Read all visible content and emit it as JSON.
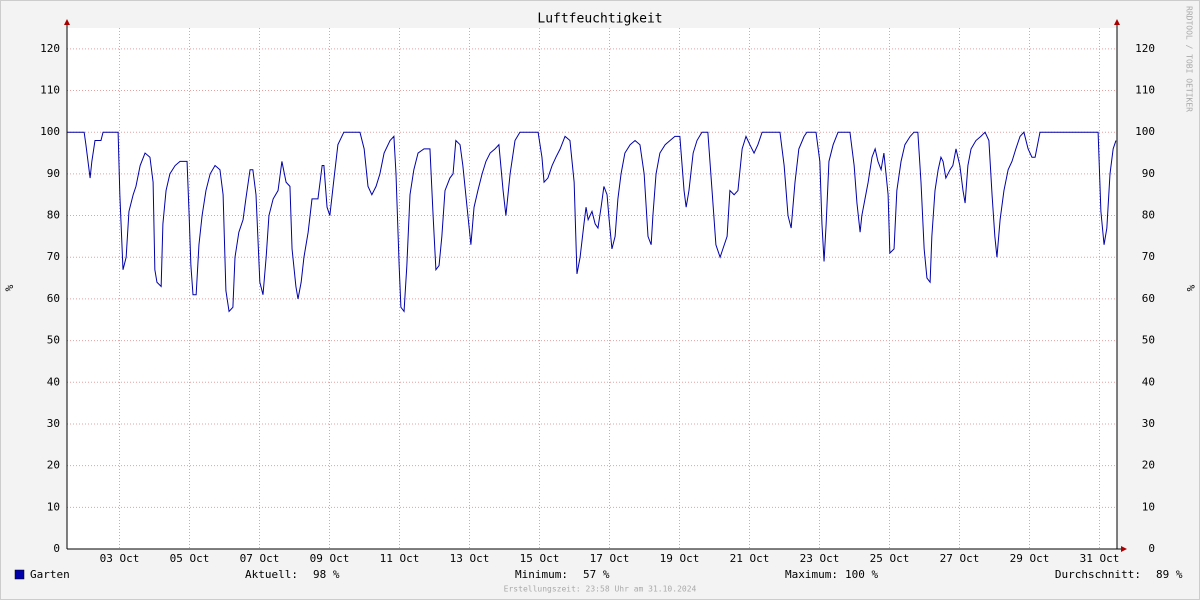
{
  "chart_data": {
    "type": "line",
    "title": "Luftfeuchtigkeit",
    "y_label": "%",
    "y2_label": "%",
    "watermark": "RRDTOOL / TOBI OETIKER",
    "footer": "Erstellungszeit: 23:58 Uhr am 31.10.2024",
    "xlim": [
      1.5,
      31.5
    ],
    "ylim": [
      0,
      125
    ],
    "yticks": [
      0,
      10,
      20,
      30,
      40,
      50,
      60,
      70,
      80,
      90,
      100,
      110,
      120
    ],
    "xticks": [
      {
        "value": 3,
        "label": "03 Oct"
      },
      {
        "value": 5,
        "label": "05 Oct"
      },
      {
        "value": 7,
        "label": "07 Oct"
      },
      {
        "value": 9,
        "label": "09 Oct"
      },
      {
        "value": 11,
        "label": "11 Oct"
      },
      {
        "value": 13,
        "label": "13 Oct"
      },
      {
        "value": 15,
        "label": "15 Oct"
      },
      {
        "value": 17,
        "label": "17 Oct"
      },
      {
        "value": 19,
        "label": "19 Oct"
      },
      {
        "value": 21,
        "label": "21 Oct"
      },
      {
        "value": 23,
        "label": "23 Oct"
      },
      {
        "value": 25,
        "label": "25 Oct"
      },
      {
        "value": 27,
        "label": "27 Oct"
      },
      {
        "value": 29,
        "label": "29 Oct"
      },
      {
        "value": 31,
        "label": "31 Oct"
      }
    ],
    "grid": true,
    "x": [
      1.5,
      1.99,
      2.04,
      2.16,
      2.21,
      2.3,
      2.47,
      2.53,
      2.96,
      3.01,
      3.1,
      3.19,
      3.27,
      3.39,
      3.47,
      3.59,
      3.73,
      3.87,
      3.96,
      4.01,
      4.07,
      4.19,
      4.24,
      4.33,
      4.44,
      4.59,
      4.73,
      4.93,
      4.99,
      5.04,
      5.1,
      5.19,
      5.27,
      5.36,
      5.47,
      5.59,
      5.73,
      5.87,
      5.96,
      6.04,
      6.13,
      6.24,
      6.3,
      6.41,
      6.53,
      6.61,
      6.73,
      6.81,
      6.9,
      7.01,
      7.1,
      7.19,
      7.27,
      7.39,
      7.53,
      7.64,
      7.76,
      7.87,
      7.93,
      8.04,
      8.1,
      8.19,
      8.27,
      8.39,
      8.5,
      8.67,
      8.79,
      8.84,
      8.93,
      9.01,
      9.13,
      9.24,
      9.41,
      9.87,
      9.99,
      10.1,
      10.21,
      10.33,
      10.44,
      10.56,
      10.73,
      10.84,
      10.9,
      10.99,
      11.04,
      11.13,
      11.21,
      11.3,
      11.41,
      11.53,
      11.7,
      11.87,
      11.96,
      12.04,
      12.13,
      12.21,
      12.3,
      12.44,
      12.53,
      12.61,
      12.73,
      12.81,
      12.93,
      13.04,
      13.13,
      13.24,
      13.36,
      13.47,
      13.59,
      13.73,
      13.84,
      13.96,
      14.04,
      14.16,
      14.3,
      14.44,
      14.96,
      15.07,
      15.13,
      15.24,
      15.36,
      15.47,
      15.59,
      15.73,
      15.87,
      15.99,
      16.07,
      16.16,
      16.27,
      16.33,
      16.39,
      16.5,
      16.59,
      16.67,
      16.76,
      16.84,
      16.93,
      16.99,
      17.07,
      17.16,
      17.24,
      17.33,
      17.44,
      17.59,
      17.73,
      17.87,
      17.99,
      18.1,
      18.19,
      18.24,
      18.33,
      18.44,
      18.59,
      18.73,
      18.87,
      19.01,
      19.13,
      19.19,
      19.27,
      19.39,
      19.5,
      19.64,
      19.81,
      19.93,
      20.04,
      20.16,
      20.24,
      20.36,
      20.44,
      20.56,
      20.67,
      20.79,
      20.9,
      21.01,
      21.13,
      21.24,
      21.36,
      21.87,
      21.99,
      22.1,
      22.19,
      22.3,
      22.41,
      22.56,
      22.64,
      22.9,
      23.01,
      23.07,
      23.13,
      23.19,
      23.27,
      23.39,
      23.53,
      23.87,
      23.99,
      24.07,
      24.16,
      24.21,
      24.3,
      24.39,
      24.5,
      24.59,
      24.67,
      24.76,
      24.84,
      24.96,
      25.01,
      25.13,
      25.21,
      25.33,
      25.44,
      25.59,
      25.7,
      25.81,
      25.9,
      25.99,
      26.07,
      26.16,
      26.21,
      26.3,
      26.39,
      26.47,
      26.53,
      26.61,
      26.73,
      26.81,
      26.9,
      27.01,
      27.1,
      27.16,
      27.24,
      27.33,
      27.47,
      27.61,
      27.73,
      27.84,
      27.93,
      28.01,
      28.07,
      28.16,
      28.27,
      28.39,
      28.5,
      28.61,
      28.73,
      28.84,
      28.96,
      29.07,
      29.16,
      29.3,
      30.96,
      31.04,
      31.13,
      31.21,
      31.3,
      31.39,
      31.47
    ],
    "series": [
      {
        "name": "Garten",
        "color": "#0000aa",
        "values": [
          100,
          100,
          97,
          89,
          93,
          98,
          98,
          100,
          100,
          85,
          67,
          70,
          81,
          85,
          87,
          92,
          95,
          94,
          88,
          67,
          64,
          63,
          78,
          86,
          90,
          92,
          93,
          93,
          80,
          68,
          61,
          61,
          73,
          80,
          86,
          90,
          92,
          91,
          85,
          62,
          57,
          58,
          70,
          76,
          79,
          84,
          91,
          91,
          85,
          64,
          61,
          70,
          80,
          84,
          86,
          93,
          88,
          87,
          72,
          63,
          60,
          64,
          70,
          76,
          84,
          84,
          92,
          92,
          82,
          80,
          89,
          97,
          100,
          100,
          96,
          87,
          85,
          87,
          90,
          95,
          98,
          99,
          90,
          68,
          58,
          57,
          68,
          85,
          91,
          95,
          96,
          96,
          80,
          67,
          68,
          75,
          86,
          89,
          90,
          98,
          97,
          92,
          82,
          73,
          82,
          86,
          90,
          93,
          95,
          96,
          97,
          86,
          80,
          90,
          98,
          100,
          100,
          94,
          88,
          89,
          92,
          94,
          96,
          99,
          98,
          88,
          66,
          70,
          78,
          82,
          79,
          81,
          78,
          77,
          82,
          87,
          85,
          79,
          72,
          75,
          84,
          90,
          95,
          97,
          98,
          97,
          90,
          75,
          73,
          80,
          90,
          95,
          97,
          98,
          99,
          99,
          86,
          82,
          86,
          95,
          98,
          100,
          100,
          86,
          73,
          70,
          72,
          75,
          86,
          85,
          86,
          96,
          99,
          97,
          95,
          97,
          100,
          100,
          92,
          80,
          77,
          88,
          96,
          99,
          100,
          100,
          93,
          78,
          69,
          78,
          93,
          97,
          100,
          100,
          92,
          83,
          76,
          80,
          84,
          88,
          94,
          96,
          93,
          91,
          95,
          85,
          71,
          72,
          86,
          93,
          97,
          99,
          100,
          100,
          88,
          72,
          65,
          64,
          75,
          86,
          91,
          94,
          93,
          89,
          91,
          92,
          96,
          92,
          86,
          83,
          92,
          96,
          98,
          99,
          100,
          98,
          85,
          75,
          70,
          79,
          86,
          91,
          93,
          96,
          99,
          100,
          96,
          94,
          94,
          100,
          100,
          81,
          73,
          77,
          90,
          96,
          98
        ]
      }
    ],
    "stats": [
      {
        "label": "Aktuell:",
        "value": "98 %"
      },
      {
        "label": "Minimum:",
        "value": "57 %"
      },
      {
        "label": "Maximum:",
        "value": "100 %"
      },
      {
        "label": "Durchschnitt:",
        "value": "89 %"
      }
    ]
  }
}
